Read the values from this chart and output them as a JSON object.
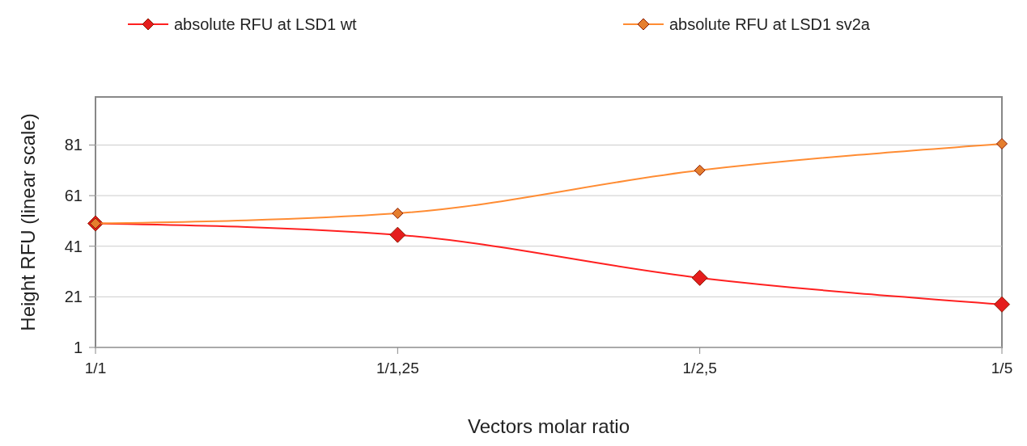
{
  "chart_data": {
    "type": "line",
    "xlabel": "Vectors molar ratio",
    "ylabel": "Height RFU (linear scale)",
    "categories": [
      "1/1",
      "1/1,25",
      "1/2,5",
      "1/5"
    ],
    "series": [
      {
        "name": "absolute RFU at LSD1 wt",
        "color": "#ff2020",
        "values": [
          50,
          45.5,
          28.5,
          18
        ]
      },
      {
        "name": "absolute RFU at LSD1 sv2a",
        "color": "#ff8c33",
        "values": [
          50,
          54,
          71,
          81.5
        ]
      }
    ],
    "ylim": [
      1,
      100
    ],
    "yticks": [
      1,
      21,
      41,
      61,
      81
    ],
    "grid": "y",
    "legend": "top",
    "marker": "diamond",
    "line_style": "solid"
  }
}
